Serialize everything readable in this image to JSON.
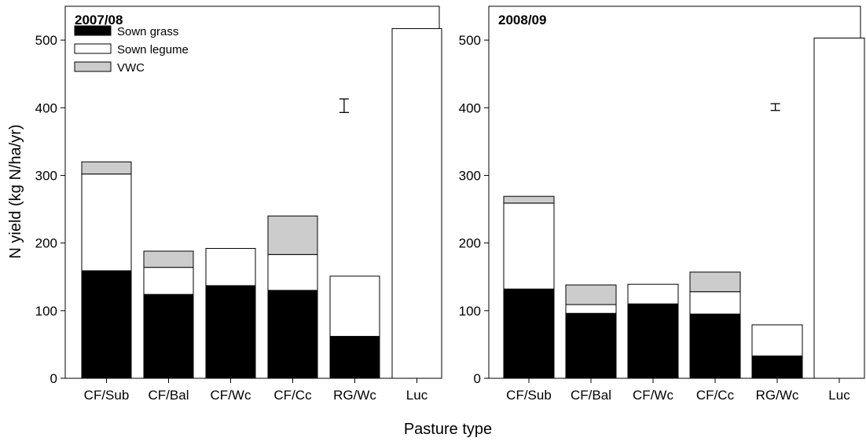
{
  "xlabel": "Pasture type",
  "ylabel": "N yield (kg N/ha/yr)",
  "legend": [
    {
      "label": "Sown grass",
      "color": "#000000"
    },
    {
      "label": "Sown legume",
      "color": "#ffffff"
    },
    {
      "label": "VWC",
      "color": "#cccccc"
    }
  ],
  "chart_data": [
    {
      "type": "bar",
      "stacked": true,
      "title": "2007/08",
      "categories": [
        "CF/Sub",
        "CF/Bal",
        "CF/Wc",
        "CF/Cc",
        "RG/Wc",
        "Luc"
      ],
      "series": [
        {
          "name": "Sown grass",
          "color": "#000000",
          "values": [
            159,
            124,
            137,
            130,
            62,
            0
          ]
        },
        {
          "name": "Sown legume",
          "color": "#ffffff",
          "values": [
            143,
            40,
            55,
            53,
            89,
            517
          ]
        },
        {
          "name": "VWC",
          "color": "#cccccc",
          "values": [
            18,
            24,
            0,
            57,
            0,
            0
          ]
        }
      ],
      "error_bar": {
        "center": 403,
        "half_width": 10
      },
      "ylim": [
        0,
        550
      ],
      "yticks": [
        0,
        100,
        200,
        300,
        400,
        500
      ],
      "legend_position": "top-left"
    },
    {
      "type": "bar",
      "stacked": true,
      "title": "2008/09",
      "categories": [
        "CF/Sub",
        "CF/Bal",
        "CF/Wc",
        "CF/Cc",
        "RG/Wc",
        "Luc"
      ],
      "series": [
        {
          "name": "Sown grass",
          "color": "#000000",
          "values": [
            132,
            96,
            110,
            95,
            33,
            0
          ]
        },
        {
          "name": "Sown legume",
          "color": "#ffffff",
          "values": [
            127,
            13,
            29,
            33,
            46,
            503
          ]
        },
        {
          "name": "VWC",
          "color": "#cccccc",
          "values": [
            10,
            29,
            0,
            29,
            0,
            0
          ]
        }
      ],
      "error_bar": {
        "center": 401,
        "half_width": 5
      },
      "ylim": [
        0,
        550
      ],
      "yticks": [
        0,
        100,
        200,
        300,
        400,
        500
      ]
    }
  ]
}
